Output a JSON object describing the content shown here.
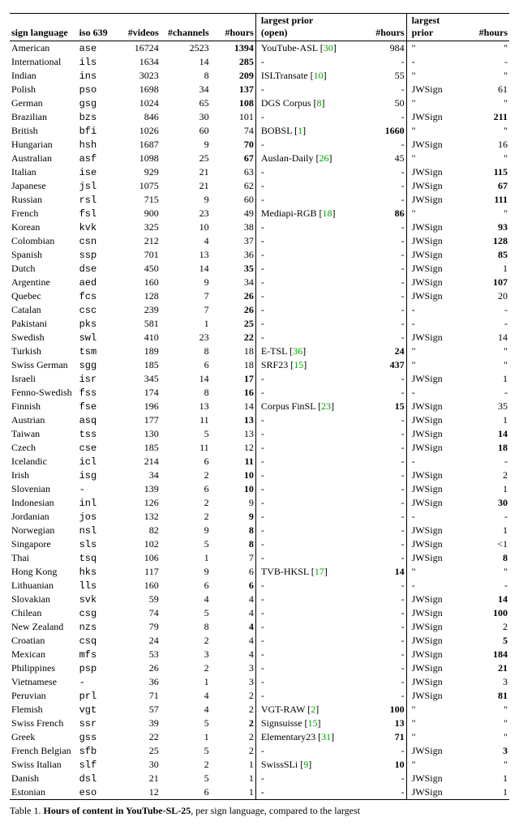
{
  "table": {
    "headers": {
      "lang": "sign language",
      "iso": "iso 639",
      "videos": "#videos",
      "channels": "#channels",
      "hours1": "#hours",
      "lpo_line1": "largest prior",
      "lpo_line2": "(open)",
      "hours2": "#hours",
      "lp_line1": "largest",
      "lp_line2": "prior",
      "hours3": "#hours"
    },
    "rows": [
      {
        "lang": "American",
        "iso": "ase",
        "videos": "16724",
        "channels": "2523",
        "hours": "1394",
        "hours_bold": true,
        "lpo": "YouTube-ASL ",
        "lpo_cite": "30",
        "lpo_hours": "984",
        "lp": "\"",
        "lp_hours": "\""
      },
      {
        "lang": "International",
        "iso": "ils",
        "videos": "1634",
        "channels": "14",
        "hours": "285",
        "hours_bold": true,
        "lpo": "-",
        "lpo_hours": "-",
        "lp": "-",
        "lp_hours": "-"
      },
      {
        "lang": "Indian",
        "iso": "ins",
        "videos": "3023",
        "channels": "8",
        "hours": "209",
        "hours_bold": true,
        "lpo": "ISLTransate ",
        "lpo_cite": "10",
        "lpo_hours": "55",
        "lp": "\"",
        "lp_hours": "\""
      },
      {
        "lang": "Polish",
        "iso": "pso",
        "videos": "1698",
        "channels": "34",
        "hours": "137",
        "hours_bold": true,
        "lpo": "-",
        "lpo_hours": "-",
        "lp": "JWSign",
        "lp_hours": "61"
      },
      {
        "lang": "German",
        "iso": "gsg",
        "videos": "1024",
        "channels": "65",
        "hours": "108",
        "hours_bold": true,
        "lpo": "DGS Corpus ",
        "lpo_cite": "8",
        "lpo_hours": "50",
        "lp": "\"",
        "lp_hours": "\""
      },
      {
        "lang": "Brazilian",
        "iso": "bzs",
        "videos": "846",
        "channels": "30",
        "hours": "101",
        "hours_bold": false,
        "lpo": "-",
        "lpo_hours": "-",
        "lp": "JWSign",
        "lp_hours": "211",
        "lph_bold": true
      },
      {
        "lang": "British",
        "iso": "bfi",
        "videos": "1026",
        "channels": "60",
        "hours": "74",
        "hours_bold": false,
        "lpo": "BOBSL ",
        "lpo_cite": "1",
        "lpo_hours": "1660",
        "lpoh_bold": true,
        "lp": "\"",
        "lp_hours": "\""
      },
      {
        "lang": "Hungarian",
        "iso": "hsh",
        "videos": "1687",
        "channels": "9",
        "hours": "70",
        "hours_bold": true,
        "lpo": "-",
        "lpo_hours": "-",
        "lp": "JWSign",
        "lp_hours": "16"
      },
      {
        "lang": "Australian",
        "iso": "asf",
        "videos": "1098",
        "channels": "25",
        "hours": "67",
        "hours_bold": true,
        "lpo": "Auslan-Daily ",
        "lpo_cite": "26",
        "lpo_hours": "45",
        "lp": "\"",
        "lp_hours": "\""
      },
      {
        "lang": "Italian",
        "iso": "ise",
        "videos": "929",
        "channels": "21",
        "hours": "63",
        "hours_bold": false,
        "lpo": "-",
        "lpo_hours": "-",
        "lp": "JWSign",
        "lp_hours": "115",
        "lph_bold": true
      },
      {
        "lang": "Japanese",
        "iso": "jsl",
        "videos": "1075",
        "channels": "21",
        "hours": "62",
        "hours_bold": false,
        "lpo": "-",
        "lpo_hours": "-",
        "lp": "JWSign",
        "lp_hours": "67",
        "lph_bold": true
      },
      {
        "lang": "Russian",
        "iso": "rsl",
        "videos": "715",
        "channels": "9",
        "hours": "60",
        "hours_bold": false,
        "lpo": "-",
        "lpo_hours": "-",
        "lp": "JWSign",
        "lp_hours": "111",
        "lph_bold": true
      },
      {
        "lang": "French",
        "iso": "fsl",
        "videos": "900",
        "channels": "23",
        "hours": "49",
        "hours_bold": false,
        "lpo": "Mediapi-RGB ",
        "lpo_cite": "18",
        "lpo_hours": "86",
        "lpoh_bold": true,
        "lp": "\"",
        "lp_hours": "\""
      },
      {
        "lang": "Korean",
        "iso": "kvk",
        "videos": "325",
        "channels": "10",
        "hours": "38",
        "hours_bold": false,
        "lpo": "-",
        "lpo_hours": "-",
        "lp": "JWSign",
        "lp_hours": "93",
        "lph_bold": true
      },
      {
        "lang": "Colombian",
        "iso": "csn",
        "videos": "212",
        "channels": "4",
        "hours": "37",
        "hours_bold": false,
        "lpo": "-",
        "lpo_hours": "-",
        "lp": "JWSign",
        "lp_hours": "128",
        "lph_bold": true
      },
      {
        "lang": "Spanish",
        "iso": "ssp",
        "videos": "701",
        "channels": "13",
        "hours": "36",
        "hours_bold": false,
        "lpo": "-",
        "lpo_hours": "-",
        "lp": "JWSign",
        "lp_hours": "85",
        "lph_bold": true
      },
      {
        "lang": "Dutch",
        "iso": "dse",
        "videos": "450",
        "channels": "14",
        "hours": "35",
        "hours_bold": true,
        "lpo": "-",
        "lpo_hours": "-",
        "lp": "JWSign",
        "lp_hours": "1"
      },
      {
        "lang": "Argentine",
        "iso": "aed",
        "videos": "160",
        "channels": "9",
        "hours": "34",
        "hours_bold": false,
        "lpo": "-",
        "lpo_hours": "-",
        "lp": "JWSign",
        "lp_hours": "107",
        "lph_bold": true
      },
      {
        "lang": "Quebec",
        "iso": "fcs",
        "videos": "128",
        "channels": "7",
        "hours": "26",
        "hours_bold": true,
        "lpo": "-",
        "lpo_hours": "-",
        "lp": "JWSign",
        "lp_hours": "20"
      },
      {
        "lang": "Catalan",
        "iso": "csc",
        "videos": "239",
        "channels": "7",
        "hours": "26",
        "hours_bold": true,
        "lpo": "-",
        "lpo_hours": "-",
        "lp": "-",
        "lp_hours": "-"
      },
      {
        "lang": "Pakistani",
        "iso": "pks",
        "videos": "581",
        "channels": "1",
        "hours": "25",
        "hours_bold": true,
        "lpo": "-",
        "lpo_hours": "-",
        "lp": "-",
        "lp_hours": "-"
      },
      {
        "lang": "Swedish",
        "iso": "swl",
        "videos": "410",
        "channels": "23",
        "hours": "22",
        "hours_bold": true,
        "lpo": "-",
        "lpo_hours": "-",
        "lp": "JWSign",
        "lp_hours": "14"
      },
      {
        "lang": "Turkish",
        "iso": "tsm",
        "videos": "189",
        "channels": "8",
        "hours": "18",
        "hours_bold": false,
        "lpo": "E-TSL ",
        "lpo_cite": "36",
        "lpo_hours": "24",
        "lpoh_bold": true,
        "lp": "\"",
        "lp_hours": "\""
      },
      {
        "lang": "Swiss German",
        "iso": "sgg",
        "videos": "185",
        "channels": "6",
        "hours": "18",
        "hours_bold": false,
        "lpo": "SRF23 ",
        "lpo_cite": "15",
        "lpo_hours": "437",
        "lpoh_bold": true,
        "lp": "\"",
        "lp_hours": "\""
      },
      {
        "lang": "Israeli",
        "iso": "isr",
        "videos": "345",
        "channels": "14",
        "hours": "17",
        "hours_bold": true,
        "lpo": "-",
        "lpo_hours": "-",
        "lp": "JWSign",
        "lp_hours": "1"
      },
      {
        "lang": "Fenno-Swedish",
        "iso": "fss",
        "videos": "174",
        "channels": "8",
        "hours": "16",
        "hours_bold": true,
        "lpo": "-",
        "lpo_hours": "-",
        "lp": "-",
        "lp_hours": "-"
      },
      {
        "lang": "Finnish",
        "iso": "fse",
        "videos": "196",
        "channels": "13",
        "hours": "14",
        "hours_bold": false,
        "lpo": "Corpus FinSL ",
        "lpo_cite": "23",
        "lpo_hours": "15",
        "lpoh_bold": true,
        "lp": "JWSign",
        "lp_hours": "35"
      },
      {
        "lang": "Austrian",
        "iso": "asq",
        "videos": "177",
        "channels": "11",
        "hours": "13",
        "hours_bold": true,
        "lpo": "-",
        "lpo_hours": "-",
        "lp": "JWSign",
        "lp_hours": "1"
      },
      {
        "lang": "Taiwan",
        "iso": "tss",
        "videos": "130",
        "channels": "5",
        "hours": "13",
        "hours_bold": false,
        "lpo": "-",
        "lpo_hours": "-",
        "lp": "JWSign",
        "lp_hours": "14",
        "lph_bold": true
      },
      {
        "lang": "Czech",
        "iso": "cse",
        "videos": "185",
        "channels": "11",
        "hours": "12",
        "hours_bold": false,
        "lpo": "-",
        "lpo_hours": "-",
        "lp": "JWSign",
        "lp_hours": "18",
        "lph_bold": true
      },
      {
        "lang": "Icelandic",
        "iso": "icl",
        "videos": "214",
        "channels": "6",
        "hours": "11",
        "hours_bold": true,
        "lpo": "-",
        "lpo_hours": "-",
        "lp": "-",
        "lp_hours": "-"
      },
      {
        "lang": "Irish",
        "iso": "isg",
        "videos": "34",
        "channels": "2",
        "hours": "10",
        "hours_bold": true,
        "lpo": "-",
        "lpo_hours": "-",
        "lp": "JWSign",
        "lp_hours": "2"
      },
      {
        "lang": "Slovenian",
        "iso": "-",
        "videos": "139",
        "channels": "6",
        "hours": "10",
        "hours_bold": true,
        "lpo": "-",
        "lpo_hours": "-",
        "lp": "JWSign",
        "lp_hours": "1"
      },
      {
        "lang": "Indonesian",
        "iso": "inl",
        "videos": "126",
        "channels": "2",
        "hours": "9",
        "hours_bold": false,
        "lpo": "-",
        "lpo_hours": "-",
        "lp": "JWSign",
        "lp_hours": "30",
        "lph_bold": true
      },
      {
        "lang": "Jordanian",
        "iso": "jos",
        "videos": "132",
        "channels": "2",
        "hours": "9",
        "hours_bold": true,
        "lpo": "-",
        "lpo_hours": "-",
        "lp": "-",
        "lp_hours": "-"
      },
      {
        "lang": "Norwegian",
        "iso": "nsl",
        "videos": "82",
        "channels": "9",
        "hours": "8",
        "hours_bold": true,
        "lpo": "-",
        "lpo_hours": "-",
        "lp": "JWSign",
        "lp_hours": "1"
      },
      {
        "lang": "Singapore",
        "iso": "sls",
        "videos": "102",
        "channels": "5",
        "hours": "8",
        "hours_bold": true,
        "lpo": "-",
        "lpo_hours": "-",
        "lp": "JWSign",
        "lp_hours": "<1"
      },
      {
        "lang": "Thai",
        "iso": "tsq",
        "videos": "106",
        "channels": "1",
        "hours": "7",
        "hours_bold": false,
        "lpo": "-",
        "lpo_hours": "-",
        "lp": "JWSign",
        "lp_hours": "8",
        "lph_bold": true
      },
      {
        "lang": "Hong Kong",
        "iso": "hks",
        "videos": "117",
        "channels": "9",
        "hours": "6",
        "hours_bold": false,
        "lpo": "TVB-HKSL ",
        "lpo_cite": "17",
        "lpo_hours": "14",
        "lpoh_bold": true,
        "lp": "\"",
        "lp_hours": "\""
      },
      {
        "lang": "Lithuanian",
        "iso": "lls",
        "videos": "160",
        "channels": "6",
        "hours": "6",
        "hours_bold": true,
        "lpo": "-",
        "lpo_hours": "-",
        "lp": "-",
        "lp_hours": "-"
      },
      {
        "lang": "Slovakian",
        "iso": "svk",
        "videos": "59",
        "channels": "4",
        "hours": "4",
        "hours_bold": false,
        "lpo": "-",
        "lpo_hours": "-",
        "lp": "JWSign",
        "lp_hours": "14",
        "lph_bold": true
      },
      {
        "lang": "Chilean",
        "iso": "csg",
        "videos": "74",
        "channels": "5",
        "hours": "4",
        "hours_bold": false,
        "lpo": "-",
        "lpo_hours": "-",
        "lp": "JWSign",
        "lp_hours": "100",
        "lph_bold": true
      },
      {
        "lang": "New Zealand",
        "iso": "nzs",
        "videos": "79",
        "channels": "8",
        "hours": "4",
        "hours_bold": true,
        "lpo": "-",
        "lpo_hours": "-",
        "lp": "JWSign",
        "lp_hours": "2"
      },
      {
        "lang": "Croatian",
        "iso": "csq",
        "videos": "24",
        "channels": "2",
        "hours": "4",
        "hours_bold": false,
        "lpo": "-",
        "lpo_hours": "-",
        "lp": "JWSign",
        "lp_hours": "5",
        "lph_bold": true
      },
      {
        "lang": "Mexican",
        "iso": "mfs",
        "videos": "53",
        "channels": "3",
        "hours": "4",
        "hours_bold": false,
        "lpo": "-",
        "lpo_hours": "-",
        "lp": "JWSign",
        "lp_hours": "184",
        "lph_bold": true
      },
      {
        "lang": "Philippines",
        "iso": "psp",
        "videos": "26",
        "channels": "2",
        "hours": "3",
        "hours_bold": false,
        "lpo": "-",
        "lpo_hours": "-",
        "lp": "JWSign",
        "lp_hours": "21",
        "lph_bold": true
      },
      {
        "lang": "Vietnamese",
        "iso": "-",
        "videos": "36",
        "channels": "1",
        "hours": "3",
        "hours_bold": false,
        "lpo": "-",
        "lpo_hours": "-",
        "lp": "JWSign",
        "lp_hours": "3"
      },
      {
        "lang": "Peruvian",
        "iso": "prl",
        "videos": "71",
        "channels": "4",
        "hours": "2",
        "hours_bold": false,
        "lpo": "-",
        "lpo_hours": "-",
        "lp": "JWSign",
        "lp_hours": "81",
        "lph_bold": true
      },
      {
        "lang": "Flemish",
        "iso": "vgt",
        "videos": "57",
        "channels": "4",
        "hours": "2",
        "hours_bold": false,
        "lpo": "VGT-RAW ",
        "lpo_cite": "2",
        "lpo_hours": "100",
        "lpoh_bold": true,
        "lp": "\"",
        "lp_hours": "\""
      },
      {
        "lang": "Swiss French",
        "iso": "ssr",
        "videos": "39",
        "channels": "5",
        "hours": "2",
        "hours_bold": true,
        "lpo": "Signsuisse ",
        "lpo_cite": "15",
        "lpo_hours": "13",
        "lpoh_bold": true,
        "lp": "\"",
        "lp_hours": "\""
      },
      {
        "lang": "Greek",
        "iso": "gss",
        "videos": "22",
        "channels": "1",
        "hours": "2",
        "hours_bold": false,
        "lpo": "Elementary23 ",
        "lpo_cite": "31",
        "lpo_hours": "71",
        "lpoh_bold": true,
        "lp": "\"",
        "lp_hours": "\""
      },
      {
        "lang": "French Belgian",
        "iso": "sfb",
        "videos": "25",
        "channels": "5",
        "hours": "2",
        "hours_bold": false,
        "lpo": "-",
        "lpo_hours": "-",
        "lp": "JWSign",
        "lp_hours": "3",
        "lph_bold": true
      },
      {
        "lang": "Swiss Italian",
        "iso": "slf",
        "videos": "30",
        "channels": "2",
        "hours": "1",
        "hours_bold": false,
        "lpo": "SwissSLi ",
        "lpo_cite": "9",
        "lpo_hours": "10",
        "lpoh_bold": true,
        "lp": "\"",
        "lp_hours": "\""
      },
      {
        "lang": "Danish",
        "iso": "dsl",
        "videos": "21",
        "channels": "5",
        "hours": "1",
        "hours_bold": false,
        "lpo": "-",
        "lpo_hours": "-",
        "lp": "JWSign",
        "lp_hours": "1"
      },
      {
        "lang": "Estonian",
        "iso": "eso",
        "videos": "12",
        "channels": "6",
        "hours": "1",
        "hours_bold": false,
        "lpo": "-",
        "lpo_hours": "-",
        "lp": "JWSign",
        "lp_hours": "1"
      }
    ]
  },
  "caption_prefix": "Table 1. ",
  "caption_bold": "Hours of content in YouTube-SL-25",
  "caption_rest": ", per sign language, compared to the largest"
}
